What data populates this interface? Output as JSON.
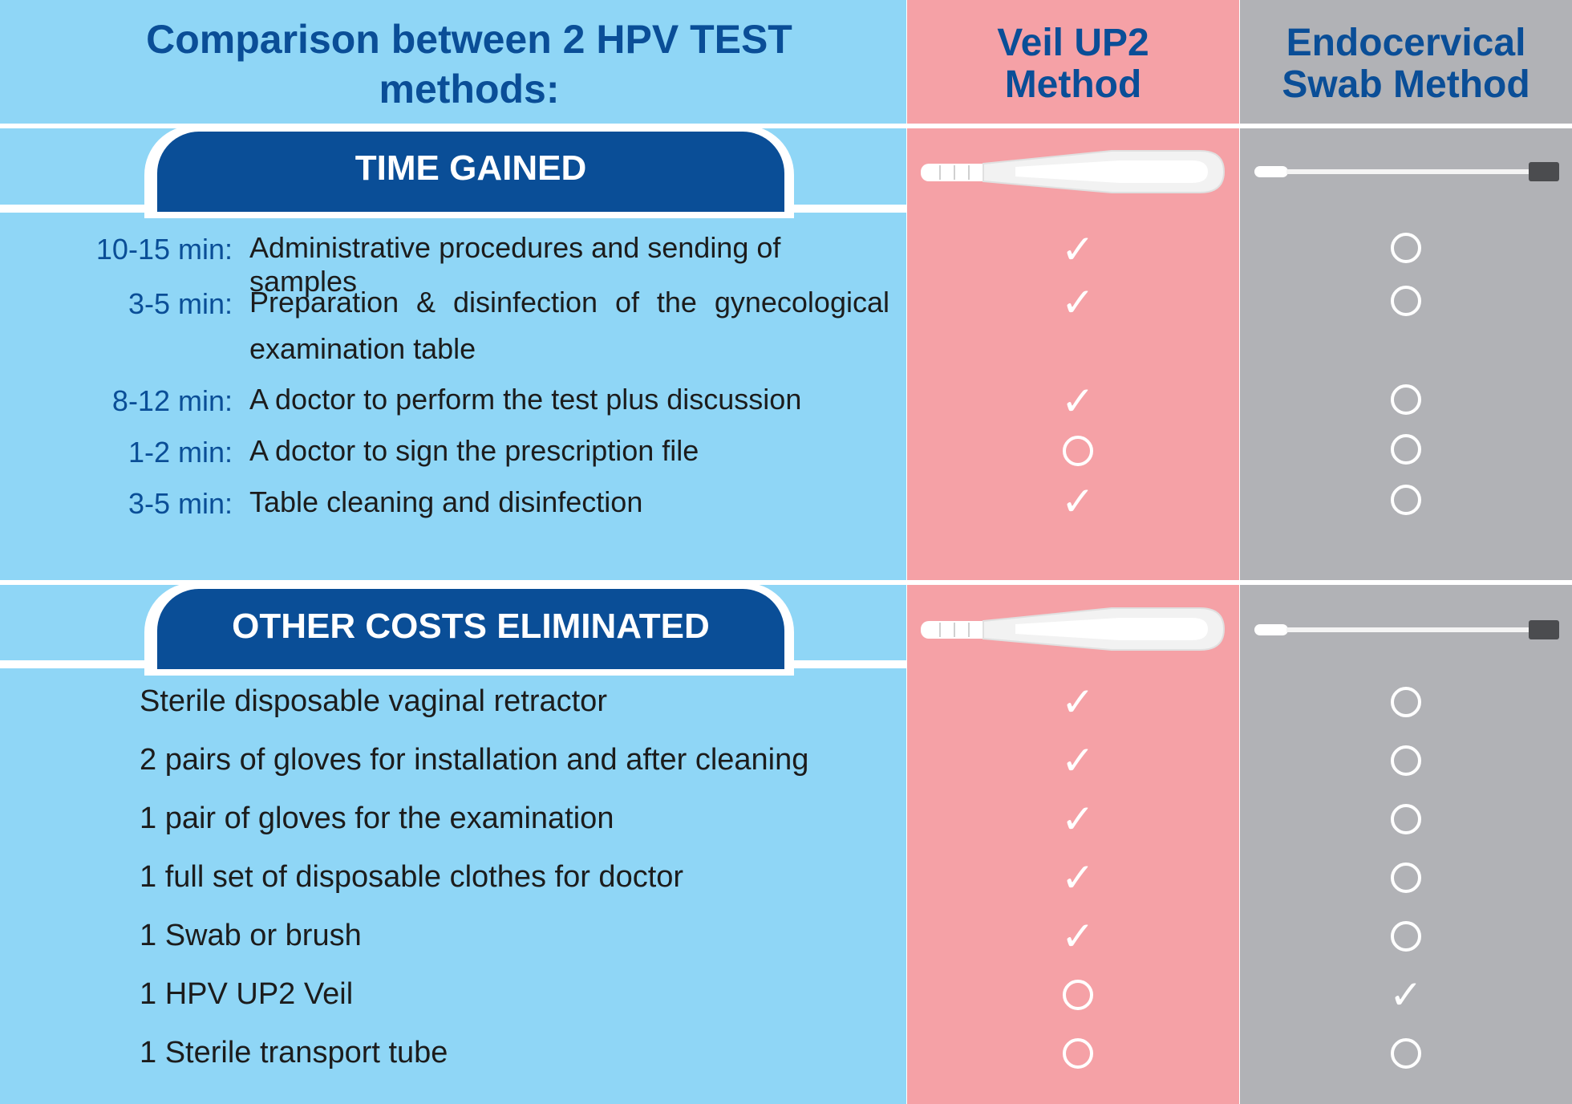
{
  "header": {
    "title": "Comparison between 2 HPV TEST methods:",
    "veil_column": "Veil UP2 Method",
    "swab_column": "Endocervical Swab Method"
  },
  "time_section": {
    "label": "TIME GAINED",
    "rows": [
      {
        "time": "10-15 min:",
        "text": "Administrative procedures and sending of samples",
        "veil": "check",
        "swab": "circle"
      },
      {
        "time": "3-5 min:",
        "text": "Preparation & disinfection of the gynecological",
        "text2": "examination table",
        "veil": "check",
        "swab": "circle"
      },
      {
        "time": "8-12 min:",
        "text": "A doctor to perform the test plus discussion",
        "veil": "check",
        "swab": "circle"
      },
      {
        "time": "1-2 min:",
        "text": "A doctor to sign the prescription file",
        "veil": "circle",
        "swab": "circle"
      },
      {
        "time": "3-5 min:",
        "text": "Table cleaning and  disinfection",
        "veil": "check",
        "swab": "circle"
      }
    ]
  },
  "costs_section": {
    "label": "OTHER COSTS ELIMINATED",
    "rows": [
      {
        "text": "Sterile disposable vaginal retractor",
        "veil": "check",
        "swab": "circle"
      },
      {
        "text": "2 pairs of gloves for installation and after cleaning",
        "veil": "check",
        "swab": "circle"
      },
      {
        "text": "1 pair of gloves for the examination",
        "veil": "check",
        "swab": "circle"
      },
      {
        "text": "1 full set of disposable clothes for doctor",
        "veil": "check",
        "swab": "circle"
      },
      {
        "text": "1 Swab or brush",
        "veil": "check",
        "swab": "circle"
      },
      {
        "text": "1 HPV UP2 Veil",
        "veil": "circle",
        "swab": "check"
      },
      {
        "text": "1 Sterile transport tube",
        "veil": "circle",
        "swab": "circle"
      }
    ]
  },
  "colors": {
    "left_bg": "#8fd6f6",
    "veil_bg": "#f5a1a6",
    "swab_bg": "#b1b2b6",
    "accent": "#0a4e97"
  },
  "icons": {
    "check": "check-icon",
    "circle": "circle-icon",
    "veil_device": "veil-device-icon",
    "swab_device": "swab-icon"
  }
}
